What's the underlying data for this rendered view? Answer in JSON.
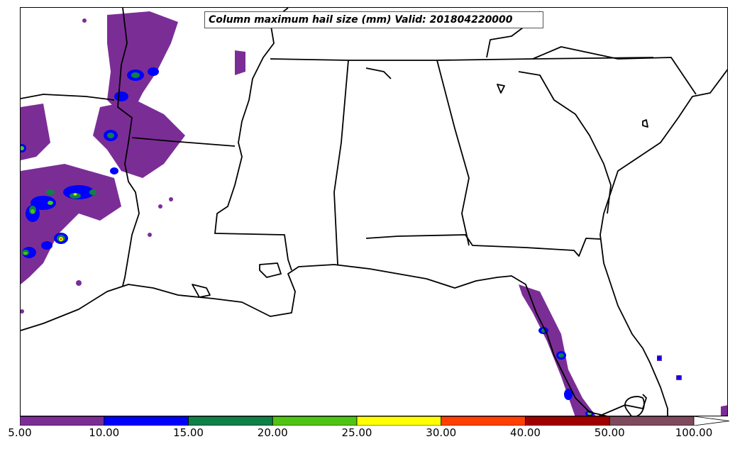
{
  "title": "Column maximum hail size (mm) Valid: 201804220000",
  "colorbar": {
    "labels": [
      "5.00",
      "10.00",
      "15.00",
      "20.00",
      "25.00",
      "30.00",
      "40.00",
      "50.00",
      "100.00"
    ],
    "colors": [
      "#7b2d96",
      "#0000ff",
      "#0f8047",
      "#4fc414",
      "#ffff00",
      "#ff4000",
      "#a00000",
      "#7f4a5e"
    ],
    "extend_color": "#ffffff"
  },
  "map": {
    "region": "Southeastern United States",
    "land_color": "#ffffff",
    "boundary_color": "#000000",
    "hail_colors": {
      "5-10": "#7b2d96",
      "10-15": "#0000ff",
      "15-20": "#0f8047",
      "20-25": "#4fc414",
      "25-30": "#ffff00",
      "30-40": "#ff4000"
    }
  }
}
